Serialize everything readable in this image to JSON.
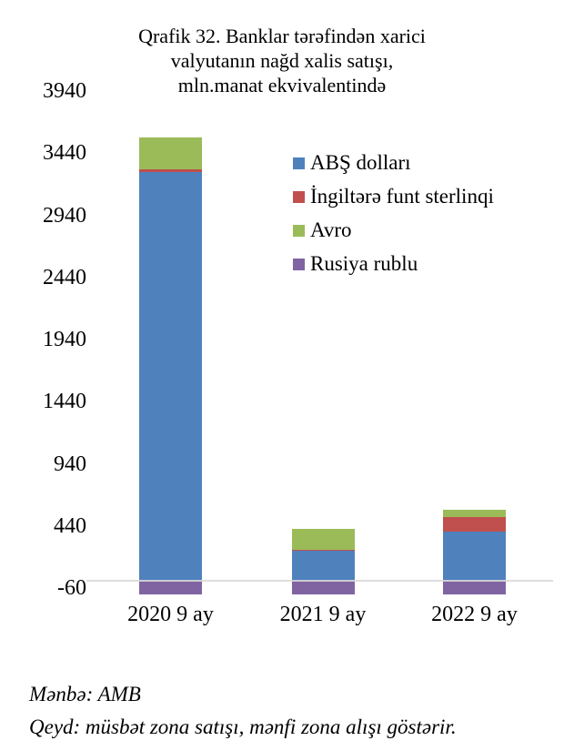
{
  "title_lines": [
    "Qrafik 32. Banklar tərəfindən xarici",
    "valyutanın nağd xalis satışı,",
    "mln.manat ekvivalentində"
  ],
  "chart_data": {
    "type": "bar",
    "stacked": true,
    "title": "Qrafik 32. Banklar tərəfindən xarici valyutanın nağd xalis satışı, mln.manat ekvivalentində",
    "categories": [
      "2020 9 ay",
      "2021 9 ay",
      "2022 9 ay"
    ],
    "series": [
      {
        "name": "ABŞ dolları",
        "color": "#4F81BD",
        "values": [
          3290,
          240,
          400
        ]
      },
      {
        "name": "İngiltərə funt sterlinqi",
        "color": "#C0504D",
        "values": [
          20,
          10,
          115
        ]
      },
      {
        "name": "Avro",
        "color": "#9BBB59",
        "values": [
          255,
          170,
          60
        ]
      },
      {
        "name": "Rusiya rublu",
        "color": "#8064A2",
        "values": [
          -110,
          -110,
          -110
        ]
      }
    ],
    "y_ticks": [
      3940,
      3440,
      2940,
      2440,
      1940,
      1440,
      940,
      440,
      -60
    ],
    "ylim": [
      -160,
      3940
    ],
    "grid": false,
    "legend_position": "upper-right-inside",
    "axis_line_color": "#D9D9D9",
    "xlabel": "",
    "ylabel": ""
  },
  "footer": {
    "source": "Mənbə: AMB",
    "note": "Qeyd: müsbət zona satışı, mənfi zona alışı göstərir."
  }
}
